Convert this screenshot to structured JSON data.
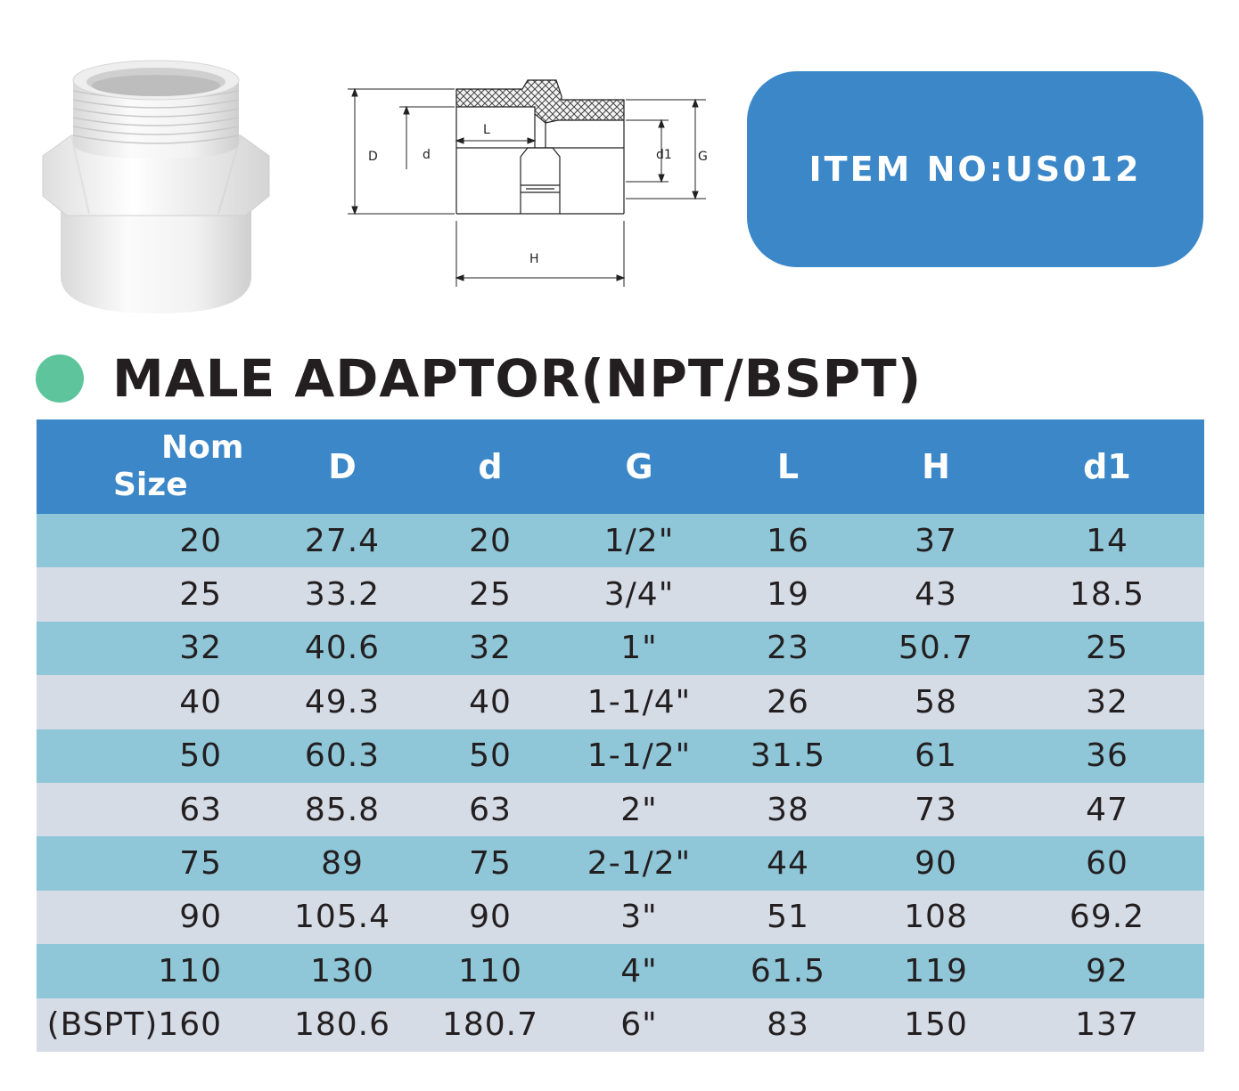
{
  "item_badge": {
    "text": "ITEM NO:US012"
  },
  "title": "MALE ADAPTOR(NPT/BSPT)",
  "drawing_labels": {
    "D": "D",
    "d": "d",
    "L": "L",
    "d1": "d1",
    "G": "G",
    "H": "H"
  },
  "table": {
    "headers": {
      "nom_line1": "Nom",
      "nom_line2": "Size",
      "D": "D",
      "d": "d",
      "G": "G",
      "L": "L",
      "H": "H",
      "d1": "d1"
    },
    "rows": [
      {
        "nom": "20",
        "D": "27.4",
        "d": "20",
        "G": "1/2\"",
        "L": "16",
        "H": "37",
        "d1": "14"
      },
      {
        "nom": "25",
        "D": "33.2",
        "d": "25",
        "G": "3/4\"",
        "L": "19",
        "H": "43",
        "d1": "18.5"
      },
      {
        "nom": "32",
        "D": "40.6",
        "d": "32",
        "G": "1\"",
        "L": "23",
        "H": "50.7",
        "d1": "25"
      },
      {
        "nom": "40",
        "D": "49.3",
        "d": "40",
        "G": "1-1/4\"",
        "L": "26",
        "H": "58",
        "d1": "32"
      },
      {
        "nom": "50",
        "D": "60.3",
        "d": "50",
        "G": "1-1/2\"",
        "L": "31.5",
        "H": "61",
        "d1": "36"
      },
      {
        "nom": "63",
        "D": "85.8",
        "d": "63",
        "G": "2\"",
        "L": "38",
        "H": "73",
        "d1": "47"
      },
      {
        "nom": "75",
        "D": "89",
        "d": "75",
        "G": "2-1/2\"",
        "L": "44",
        "H": "90",
        "d1": "60"
      },
      {
        "nom": "90",
        "D": "105.4",
        "d": "90",
        "G": "3\"",
        "L": "51",
        "H": "108",
        "d1": "69.2"
      },
      {
        "nom": "110",
        "D": "130",
        "d": "110",
        "G": "4\"",
        "L": "61.5",
        "H": "119",
        "d1": "92"
      },
      {
        "nom": "(BSPT)160",
        "D": "180.6",
        "d": "180.7",
        "G": "6\"",
        "L": "83",
        "H": "150",
        "d1": "137"
      }
    ]
  },
  "colors": {
    "header_blue": "#3b87c8",
    "row_teal": "#8fc7d9",
    "row_grey": "#d6dce6",
    "dot_green": "#5ec49c"
  }
}
